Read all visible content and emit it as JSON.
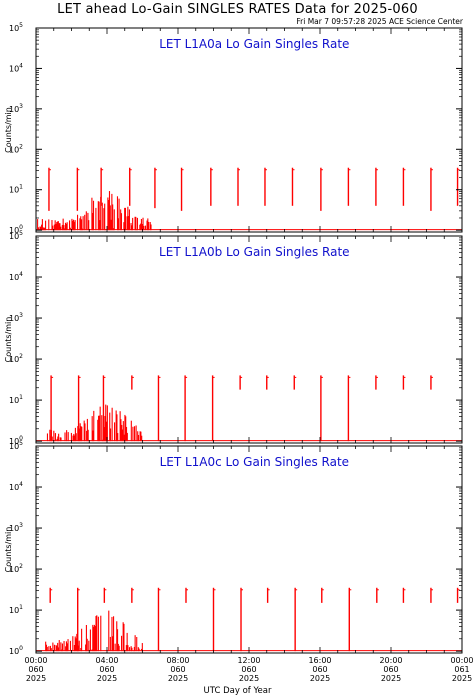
{
  "header": {
    "title": "LET ahead Lo-Gain SINGLES RATES Data for 2025-060",
    "subtitle": "Fri Mar  7 09:57:28 2025 ACE Science Center"
  },
  "xlabel": "UTC Day of Year",
  "colors": {
    "data": "#ff0000",
    "panel_title": "#1010cc"
  },
  "chart_data": [
    {
      "type": "bar",
      "title": "LET L1A0a Lo Gain Singles Rate",
      "ylabel": "Counts/min",
      "yscale": "log",
      "ylim": [
        0.9,
        100000
      ],
      "xlim": [
        0,
        24
      ],
      "xticks": [
        "00:00",
        "04:00",
        "08:00",
        "12:00",
        "16:00",
        "20:00",
        "00:00"
      ],
      "xticks_day": [
        "060",
        "060",
        "060",
        "060",
        "060",
        "060",
        "061"
      ],
      "xticks_year": [
        "2025",
        "2025",
        "2025",
        "2025",
        "2025",
        "2025",
        "2025"
      ],
      "yticks": [
        "10",
        "10",
        "10",
        "10",
        "10",
        "10"
      ],
      "yticks_exp": [
        "0",
        "1",
        "2",
        "3",
        "4",
        "5"
      ],
      "spikes": [
        {
          "x": 0.73,
          "y": 35,
          "min": 3
        },
        {
          "x": 2.33,
          "y": 35,
          "min": 3
        },
        {
          "x": 3.67,
          "y": 35,
          "min": 4
        },
        {
          "x": 5.28,
          "y": 35,
          "min": 4
        },
        {
          "x": 6.7,
          "y": 35,
          "min": 3.5
        },
        {
          "x": 8.2,
          "y": 35,
          "min": 3
        },
        {
          "x": 9.85,
          "y": 35,
          "min": 4
        },
        {
          "x": 11.38,
          "y": 35,
          "min": 4
        },
        {
          "x": 12.9,
          "y": 35,
          "min": 4
        },
        {
          "x": 14.45,
          "y": 35,
          "min": 4
        },
        {
          "x": 16.05,
          "y": 35,
          "min": 3
        },
        {
          "x": 17.6,
          "y": 35,
          "min": 4
        },
        {
          "x": 19.15,
          "y": 35,
          "min": 4
        },
        {
          "x": 20.7,
          "y": 35,
          "min": 4
        },
        {
          "x": 22.25,
          "y": 35,
          "min": 3
        },
        {
          "x": 23.75,
          "y": 35,
          "min": 4
        }
      ],
      "noise_window": [
        0,
        6.5
      ],
      "noise_peak": 8
    },
    {
      "type": "bar",
      "title": "LET L1A0b Lo Gain Singles Rate",
      "ylabel": "Counts/min",
      "yscale": "log",
      "ylim": [
        0.9,
        100000
      ],
      "xlim": [
        0,
        24
      ],
      "xticks": [
        "00:00",
        "04:00",
        "08:00",
        "12:00",
        "16:00",
        "20:00",
        "00:00"
      ],
      "xticks_day": [
        "060",
        "060",
        "060",
        "060",
        "060",
        "060",
        "061"
      ],
      "xticks_year": [
        "2025",
        "2025",
        "2025",
        "2025",
        "2025",
        "2025",
        "2025"
      ],
      "yticks": [
        "10",
        "10",
        "10",
        "10",
        "10",
        "10"
      ],
      "yticks_exp": [
        "0",
        "1",
        "2",
        "3",
        "4",
        "5"
      ],
      "spikes": [
        {
          "x": 0.85,
          "y": 40,
          "min": 1
        },
        {
          "x": 2.4,
          "y": 40,
          "min": 1
        },
        {
          "x": 3.8,
          "y": 40,
          "min": 1
        },
        {
          "x": 5.4,
          "y": 40,
          "min": 18
        },
        {
          "x": 6.9,
          "y": 40,
          "min": 1
        },
        {
          "x": 8.4,
          "y": 40,
          "min": 1
        },
        {
          "x": 9.95,
          "y": 40,
          "min": 1
        },
        {
          "x": 11.5,
          "y": 40,
          "min": 18
        },
        {
          "x": 13.0,
          "y": 40,
          "min": 18
        },
        {
          "x": 14.55,
          "y": 40,
          "min": 18
        },
        {
          "x": 16.05,
          "y": 40,
          "min": 1
        },
        {
          "x": 17.6,
          "y": 40,
          "min": 1
        },
        {
          "x": 19.15,
          "y": 40,
          "min": 18
        },
        {
          "x": 20.7,
          "y": 40,
          "min": 18
        },
        {
          "x": 22.25,
          "y": 40,
          "min": 18
        }
      ],
      "noise_window": [
        0.6,
        6.0
      ],
      "noise_peak": 6
    },
    {
      "type": "bar",
      "title": "LET L1A0c Lo Gain Singles Rate",
      "ylabel": "Counts/min",
      "yscale": "log",
      "ylim": [
        0.9,
        100000
      ],
      "xlim": [
        0,
        24
      ],
      "xticks": [
        "00:00",
        "04:00",
        "08:00",
        "12:00",
        "16:00",
        "20:00",
        "00:00"
      ],
      "xticks_day": [
        "060",
        "060",
        "060",
        "060",
        "060",
        "060",
        "061"
      ],
      "xticks_year": [
        "2025",
        "2025",
        "2025",
        "2025",
        "2025",
        "2025",
        "2025"
      ],
      "yticks": [
        "10",
        "10",
        "10",
        "10",
        "10",
        "10"
      ],
      "yticks_exp": [
        "0",
        "1",
        "2",
        "3",
        "4",
        "5"
      ],
      "spikes": [
        {
          "x": 0.8,
          "y": 35,
          "min": 15
        },
        {
          "x": 2.35,
          "y": 35,
          "min": 1
        },
        {
          "x": 3.85,
          "y": 35,
          "min": 15
        },
        {
          "x": 5.4,
          "y": 35,
          "min": 15
        },
        {
          "x": 6.9,
          "y": 35,
          "min": 1
        },
        {
          "x": 8.45,
          "y": 35,
          "min": 15
        },
        {
          "x": 10.0,
          "y": 35,
          "min": 1
        },
        {
          "x": 11.55,
          "y": 35,
          "min": 1
        },
        {
          "x": 13.05,
          "y": 35,
          "min": 15
        },
        {
          "x": 14.6,
          "y": 35,
          "min": 1
        },
        {
          "x": 16.1,
          "y": 35,
          "min": 15
        },
        {
          "x": 17.65,
          "y": 35,
          "min": 1
        },
        {
          "x": 19.2,
          "y": 35,
          "min": 15
        },
        {
          "x": 20.7,
          "y": 35,
          "min": 15
        },
        {
          "x": 22.25,
          "y": 35,
          "min": 15
        },
        {
          "x": 23.75,
          "y": 35,
          "min": 15
        }
      ],
      "noise_window": [
        0.5,
        6.0
      ],
      "noise_peak": 8
    }
  ]
}
